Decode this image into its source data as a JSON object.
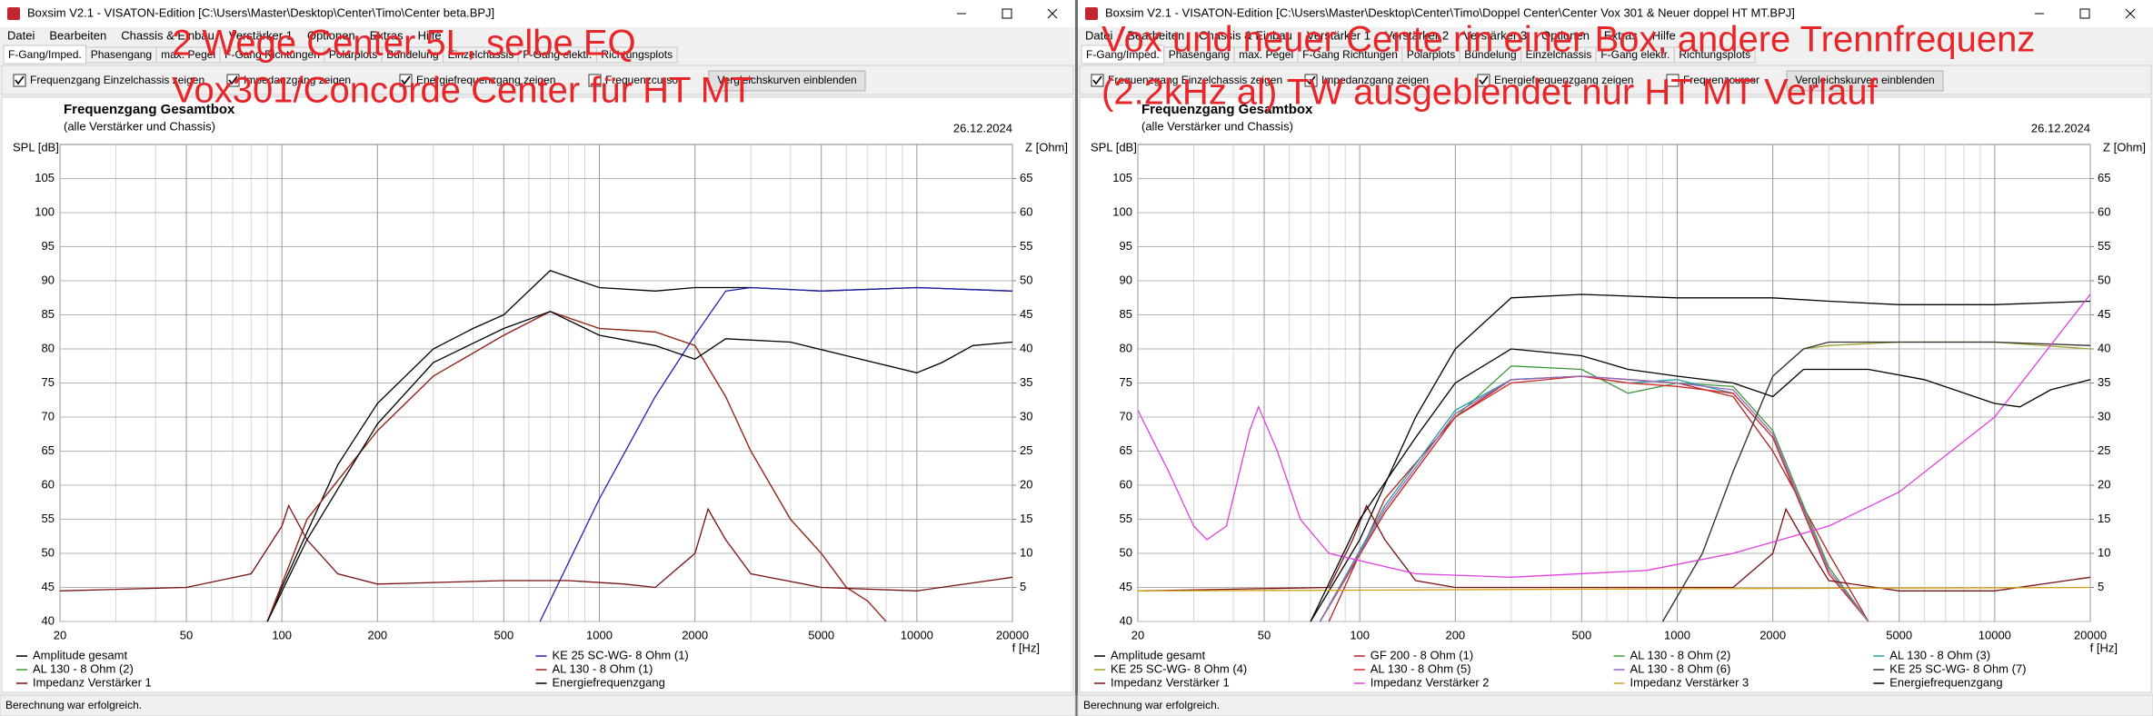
{
  "windows": [
    {
      "title": "Boxsim V2.1 - VISATON-Edition [C:\\Users\\Master\\Desktop\\Center\\Timo\\Center beta.BPJ]",
      "menu": [
        "Datei",
        "Bearbeiten",
        "Chassis & Einbau",
        "Verstärker 1",
        "Optionen",
        "Extras",
        "Hilfe"
      ],
      "tabs": [
        "F-Gang/Imped.",
        "Phasengang",
        "max. Pegel",
        "F-Gang Richtungen",
        "Polarplots",
        "Bündelung",
        "Einzelchassis",
        "F-Gang elektr.",
        "Richtungsplots"
      ],
      "options": [
        {
          "label": "Frequenzgang Einzelchassis zeigen",
          "checked": true
        },
        {
          "label": "Impedanzgang zeigen",
          "checked": true
        },
        {
          "label": "Energiefrequenzgang zeigen",
          "checked": true
        },
        {
          "label": "Frequenzcursor",
          "checked": false
        }
      ],
      "button": "Vergleichskurven einblenden",
      "status": "Berechnung war erfolgreich."
    },
    {
      "title": "Boxsim V2.1 - VISATON-Edition [C:\\Users\\Master\\Desktop\\Center\\Timo\\Doppel Center\\Center Vox 301 & Neuer doppel HT MT.BPJ]",
      "menu": [
        "Datei",
        "Bearbeiten",
        "Chassis & Einbau",
        "Verstärker 1",
        "Verstärker 2",
        "Verstärker 3",
        "Optionen",
        "Extras",
        "Hilfe"
      ],
      "tabs": [
        "F-Gang/Imped.",
        "Phasengang",
        "max. Pegel",
        "F-Gang Richtungen",
        "Polarplots",
        "Bündelung",
        "Einzelchassis",
        "F-Gang elektr.",
        "Richtungsplots"
      ],
      "options": [
        {
          "label": "Frequenzgang Einzelchassis zeigen",
          "checked": true
        },
        {
          "label": "Impedanzgang zeigen",
          "checked": true
        },
        {
          "label": "Energiefrequenzgang zeigen",
          "checked": true
        },
        {
          "label": "Frequenzcursor",
          "checked": false
        }
      ],
      "button": "Vergleichskurven einblenden",
      "status": "Berechnung war erfolgreich."
    }
  ],
  "chart_data": [
    {
      "type": "line",
      "title": "Frequenzgang Gesamtbox",
      "subtitle": "(alle Verstärker und Chassis)",
      "date": "26.12.2024",
      "y_label": "SPL [dB]",
      "y2_label": "Z [Ohm]",
      "x_label": "f [Hz]",
      "annotations": [
        "2 Wege Center 5L, selbe EQ",
        "Vox301/Concorde Center für HT MT"
      ],
      "xscale": "log",
      "xlim": [
        20,
        20000
      ],
      "xticks": [
        20,
        50,
        100,
        200,
        500,
        1000,
        2000,
        5000,
        10000,
        20000
      ],
      "x_minor_ticks": [
        30,
        40,
        60,
        70,
        80,
        90,
        300,
        400,
        600,
        700,
        800,
        900,
        3000,
        4000,
        6000,
        7000,
        8000,
        9000
      ],
      "ylim": [
        40,
        110
      ],
      "yticks": [
        40,
        45,
        50,
        55,
        60,
        65,
        70,
        75,
        80,
        85,
        90,
        95,
        100,
        105
      ],
      "y2lim": [
        0,
        70
      ],
      "y2ticks": [
        5,
        10,
        15,
        20,
        25,
        30,
        35,
        40,
        45,
        50,
        55,
        60,
        65
      ],
      "grid": true,
      "legend_columns": 2,
      "series": [
        {
          "name": "Amplitude gesamt",
          "color": "#000000",
          "x": [
            90,
            100,
            150,
            200,
            300,
            400,
            500,
            700,
            1000,
            1500,
            2000,
            3000,
            5000,
            10000,
            20000
          ],
          "values": [
            40,
            45,
            63,
            72,
            80,
            83,
            85,
            91.5,
            89,
            88.5,
            89,
            89,
            88.5,
            89,
            88.5
          ]
        },
        {
          "name": "KE 25 SC-WG- 8 Ohm   (1)",
          "color": "#2020b0",
          "x": [
            650,
            1000,
            1500,
            2000,
            2500,
            3000,
            5000,
            10000,
            20000
          ],
          "values": [
            40,
            58,
            73,
            82,
            88.5,
            89,
            88.5,
            89,
            88.5
          ]
        },
        {
          "name": "AL 130 - 8 Ohm (2)",
          "color": "#3a9a3a",
          "x": [
            90,
            120,
            200,
            300,
            500,
            700,
            1000,
            1500,
            2000,
            2500,
            3000,
            4000,
            5000,
            6000,
            7000,
            8000
          ],
          "values": [
            40,
            55,
            68,
            76,
            82,
            85.5,
            83,
            82.5,
            80.5,
            73,
            65,
            55,
            50,
            45,
            43,
            40
          ]
        },
        {
          "name": "AL 130 - 8 Ohm (1)",
          "color": "#a02020",
          "x": [
            90,
            120,
            200,
            300,
            500,
            700,
            1000,
            1500,
            2000,
            2500,
            3000,
            4000,
            5000,
            6000,
            7000,
            8000
          ],
          "values": [
            40,
            55,
            68,
            76,
            82,
            85.5,
            83,
            82.5,
            80.5,
            73,
            65,
            55,
            50,
            45,
            43,
            40
          ]
        },
        {
          "name": "Impedanz Verstärker 1",
          "color": "#7a1010",
          "axis": "y2",
          "x": [
            20,
            50,
            80,
            100,
            105,
            120,
            150,
            200,
            500,
            800,
            1200,
            1500,
            2000,
            2200,
            2500,
            3000,
            5000,
            10000,
            20000
          ],
          "values": [
            4.5,
            5,
            7,
            14,
            17,
            12,
            7,
            5.5,
            6,
            6,
            5.5,
            5,
            10,
            16.5,
            12,
            7,
            5,
            4.5,
            6.5
          ]
        },
        {
          "name": "Energiefrequenzgang",
          "color": "#000000",
          "x": [
            90,
            120,
            200,
            300,
            500,
            700,
            1000,
            1500,
            2000,
            2500,
            4000,
            6000,
            10000,
            12000,
            15000,
            20000
          ],
          "values": [
            40,
            52,
            69,
            78,
            83,
            85.5,
            82,
            80.5,
            78.5,
            81.5,
            81,
            79,
            76.5,
            78,
            80.5,
            81
          ]
        }
      ]
    },
    {
      "type": "line",
      "title": "Frequenzgang Gesamtbox",
      "subtitle": "(alle Verstärker und Chassis)",
      "date": "26.12.2024",
      "y_label": "SPL [dB]",
      "y2_label": "Z [Ohm]",
      "x_label": "f [Hz]",
      "annotations": [
        "Vox und neuer Cente rin einer Box, andere Trennfrequenz",
        "(2.2kHz al) TW ausgeblendet nur HT MT Verlauf"
      ],
      "xscale": "log",
      "xlim": [
        20,
        20000
      ],
      "xticks": [
        20,
        50,
        100,
        200,
        500,
        1000,
        2000,
        5000,
        10000,
        20000
      ],
      "x_minor_ticks": [
        30,
        40,
        60,
        70,
        80,
        90,
        300,
        400,
        600,
        700,
        800,
        900,
        3000,
        4000,
        6000,
        7000,
        8000,
        9000
      ],
      "ylim": [
        40,
        110
      ],
      "yticks": [
        40,
        45,
        50,
        55,
        60,
        65,
        70,
        75,
        80,
        85,
        90,
        95,
        100,
        105
      ],
      "y2lim": [
        0,
        70
      ],
      "y2ticks": [
        5,
        10,
        15,
        20,
        25,
        30,
        35,
        40,
        45,
        50,
        55,
        60,
        65
      ],
      "grid": true,
      "legend_columns": 4,
      "series": [
        {
          "name": "Amplitude gesamt",
          "color": "#000000",
          "x": [
            70,
            100,
            150,
            200,
            300,
            500,
            1000,
            2000,
            3000,
            5000,
            10000,
            20000
          ],
          "values": [
            40,
            52,
            70,
            80,
            87.5,
            88,
            87.5,
            87.5,
            87,
            86.5,
            86.5,
            87
          ]
        },
        {
          "name": "GF 200 - 8 Ohm (1)",
          "color": "#b22222",
          "x": [
            80,
            120,
            200,
            300,
            500,
            1000,
            1500,
            2000,
            3000,
            4000
          ],
          "values": [
            40,
            58,
            70,
            75.5,
            76,
            75,
            73,
            65,
            50,
            40
          ]
        },
        {
          "name": "AL 130 - 8 Ohm (2)",
          "color": "#3a9a3a",
          "x": [
            75,
            120,
            200,
            300,
            500,
            700,
            1000,
            1500,
            2000,
            2500,
            3000,
            4000
          ],
          "values": [
            40,
            56,
            70,
            77.5,
            77,
            73.5,
            75,
            74.5,
            68,
            57,
            48,
            40
          ]
        },
        {
          "name": "AL 130 - 8 Ohm (3)",
          "color": "#2a9d9d",
          "x": [
            75,
            120,
            200,
            300,
            500,
            700,
            1000,
            1500,
            2000,
            2500,
            3000,
            4000
          ],
          "values": [
            40,
            57,
            71,
            75.5,
            76,
            75,
            75.5,
            73.5,
            67,
            56,
            47,
            40
          ]
        },
        {
          "name": "KE 25 SC-WG- 8 Ohm    (4)",
          "color": "#a0a030",
          "x": [
            900,
            1200,
            1500,
            2000,
            2500,
            3000,
            5000,
            10000,
            20000
          ],
          "values": [
            40,
            50,
            62,
            76,
            80,
            80.5,
            81,
            81,
            80
          ]
        },
        {
          "name": "AL 130 - 8 Ohm (5)",
          "color": "#d62728",
          "x": [
            75,
            120,
            200,
            300,
            500,
            700,
            1000,
            1500,
            2000,
            2500,
            3000,
            4000
          ],
          "values": [
            40,
            56,
            70,
            75,
            76,
            75,
            74.5,
            73.5,
            67,
            56,
            47,
            40
          ]
        },
        {
          "name": "AL 130 - 8 Ohm (6)",
          "color": "#9467bd",
          "x": [
            75,
            120,
            200,
            300,
            500,
            700,
            1000,
            1500,
            2000,
            2500,
            3000,
            4000
          ],
          "values": [
            40,
            56.5,
            70.5,
            75.5,
            76,
            75.5,
            75,
            74,
            67.5,
            56.5,
            47.5,
            40
          ]
        },
        {
          "name": "KE 25 SC-WG- 8 Ohm    (7)",
          "color": "#333333",
          "x": [
            900,
            1200,
            1500,
            2000,
            2500,
            3000,
            5000,
            10000,
            20000
          ],
          "values": [
            40,
            50,
            62,
            76,
            80,
            81,
            81,
            81,
            80.5
          ]
        },
        {
          "name": "Impedanz Verstärker 1",
          "color": "#7a1010",
          "axis": "y2",
          "x": [
            20,
            80,
            95,
            105,
            120,
            150,
            200,
            1000,
            1500,
            2000,
            2200,
            2500,
            3000,
            5000,
            10000,
            20000
          ],
          "values": [
            4.5,
            5,
            12,
            17,
            12,
            6,
            5,
            5,
            5,
            10,
            16.5,
            12,
            6,
            4.5,
            4.5,
            6.5
          ]
        },
        {
          "name": "Impedanz Verstärker 2",
          "color": "#e040e0",
          "axis": "y2",
          "x": [
            20,
            25,
            30,
            33,
            38,
            45,
            48,
            55,
            65,
            80,
            150,
            300,
            800,
            1500,
            3000,
            5000,
            10000,
            20000
          ],
          "values": [
            31,
            22,
            14,
            12,
            14,
            28,
            31.5,
            25,
            15,
            10,
            7,
            6.5,
            7.5,
            10,
            14,
            19,
            30,
            48
          ]
        },
        {
          "name": "Impedanz Verstärker 3",
          "color": "#d4a017",
          "axis": "y2",
          "x": [
            20,
            100,
            1000,
            20000
          ],
          "values": [
            4.5,
            4.6,
            4.8,
            5
          ]
        },
        {
          "name": "Energiefrequenzgang",
          "color": "#000000",
          "x": [
            70,
            100,
            150,
            200,
            300,
            500,
            700,
            1000,
            1500,
            2000,
            2500,
            4000,
            6000,
            10000,
            12000,
            15000,
            20000
          ],
          "values": [
            40,
            55,
            67,
            75,
            80,
            79,
            77,
            76,
            75,
            73,
            77,
            77,
            75.5,
            72,
            71.5,
            74,
            75.5
          ]
        }
      ]
    }
  ]
}
